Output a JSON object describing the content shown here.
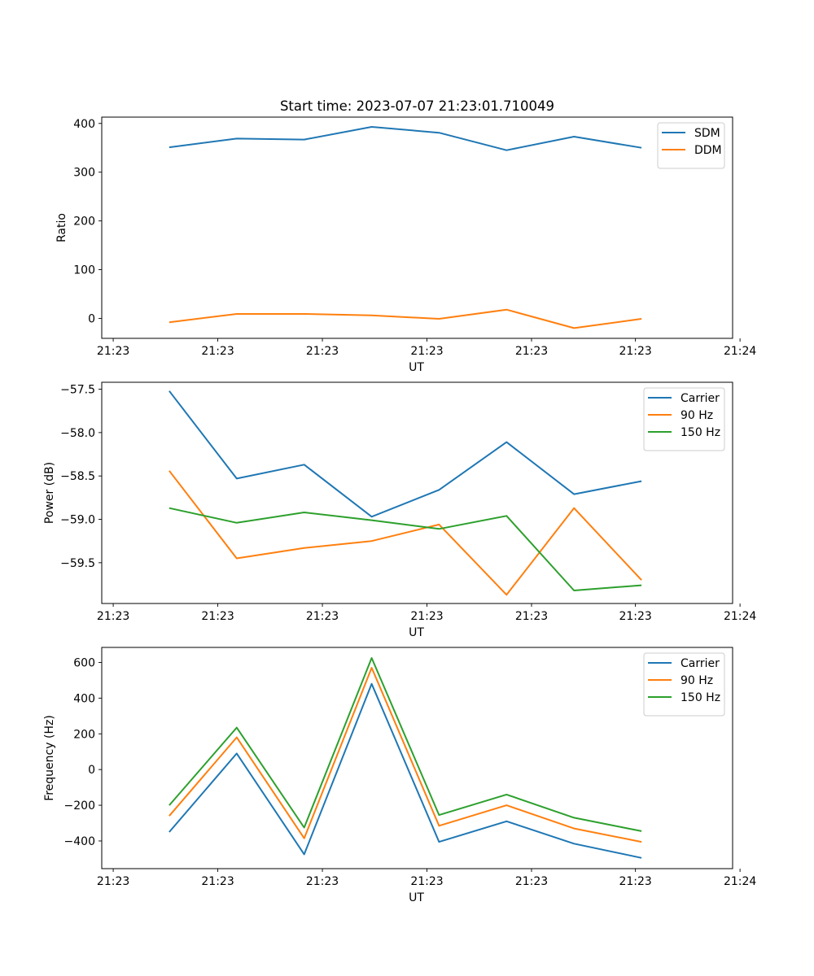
{
  "figure_title": "Start time: 2023-07-07 21:23:01.710049",
  "colors": {
    "c0": "#1f77b4",
    "c1": "#ff7f0e",
    "c2": "#2ca02c"
  },
  "chart_data": [
    {
      "type": "line",
      "title": "Start time: 2023-07-07 21:23:01.710049",
      "xlabel": "UT",
      "ylabel": "Ratio",
      "x": [
        1,
        2,
        3,
        4,
        5,
        6,
        7,
        8
      ],
      "xlim": [
        0.0,
        9.35
      ],
      "xticks": [
        0.17,
        1.72,
        3.27,
        4.82,
        6.37,
        7.91,
        9.46
      ],
      "xtick_labels": [
        "21:23",
        "21:23",
        "21:23",
        "21:23",
        "21:23",
        "21:23",
        "21:24"
      ],
      "ylim": [
        -41,
        413
      ],
      "yticks": [
        0,
        100,
        200,
        300,
        400
      ],
      "ytick_labels": [
        "0",
        "100",
        "200",
        "300",
        "400"
      ],
      "legend_position": "top-right",
      "series": [
        {
          "name": "SDM",
          "color": "#1f77b4",
          "values": [
            351,
            369,
            367,
            393,
            381,
            345,
            373,
            350
          ]
        },
        {
          "name": "DDM",
          "color": "#ff7f0e",
          "values": [
            -8,
            9,
            9,
            6,
            -1,
            18,
            -20,
            -1
          ]
        }
      ]
    },
    {
      "type": "line",
      "title": "",
      "xlabel": "UT",
      "ylabel": "Power (dB)",
      "x": [
        1,
        2,
        3,
        4,
        5,
        6,
        7,
        8
      ],
      "xlim": [
        0.0,
        9.35
      ],
      "xticks": [
        0.17,
        1.72,
        3.27,
        4.82,
        6.37,
        7.91,
        9.46
      ],
      "xtick_labels": [
        "21:23",
        "21:23",
        "21:23",
        "21:23",
        "21:23",
        "21:23",
        "21:24"
      ],
      "ylim": [
        -59.97,
        -57.42
      ],
      "yticks": [
        -59.5,
        -59.0,
        -58.5,
        -58.0,
        -57.5
      ],
      "ytick_labels": [
        "−59.5",
        "−59.0",
        "−58.5",
        "−58.0",
        "−57.5"
      ],
      "legend_position": "top-right",
      "series": [
        {
          "name": "Carrier",
          "color": "#1f77b4",
          "values": [
            -57.52,
            -58.53,
            -58.37,
            -58.97,
            -58.66,
            -58.11,
            -58.71,
            -58.56
          ]
        },
        {
          "name": "90 Hz",
          "color": "#ff7f0e",
          "values": [
            -58.44,
            -59.45,
            -59.33,
            -59.25,
            -59.06,
            -59.87,
            -58.87,
            -59.7
          ]
        },
        {
          "name": "150 Hz",
          "color": "#2ca02c",
          "values": [
            -58.87,
            -59.04,
            -58.92,
            -59.01,
            -59.11,
            -58.96,
            -59.82,
            -59.76
          ]
        }
      ]
    },
    {
      "type": "line",
      "title": "",
      "xlabel": "UT",
      "ylabel": "Frequency (Hz)",
      "x": [
        1,
        2,
        3,
        4,
        5,
        6,
        7,
        8
      ],
      "xlim": [
        0.0,
        9.35
      ],
      "xticks": [
        0.17,
        1.72,
        3.27,
        4.82,
        6.37,
        7.91,
        9.46
      ],
      "xtick_labels": [
        "21:23",
        "21:23",
        "21:23",
        "21:23",
        "21:23",
        "21:23",
        "21:24"
      ],
      "ylim": [
        -555,
        684
      ],
      "yticks": [
        -400,
        -200,
        0,
        200,
        400,
        600
      ],
      "ytick_labels": [
        "−400",
        "−200",
        "0",
        "200",
        "400",
        "600"
      ],
      "legend_position": "top-right",
      "series": [
        {
          "name": "Carrier",
          "color": "#1f77b4",
          "values": [
            -350,
            90,
            -475,
            480,
            -405,
            -290,
            -415,
            -495
          ]
        },
        {
          "name": "90 Hz",
          "color": "#ff7f0e",
          "values": [
            -260,
            180,
            -385,
            570,
            -315,
            -200,
            -330,
            -405
          ]
        },
        {
          "name": "150 Hz",
          "color": "#2ca02c",
          "values": [
            -200,
            235,
            -325,
            625,
            -255,
            -140,
            -270,
            -345
          ]
        }
      ]
    }
  ]
}
